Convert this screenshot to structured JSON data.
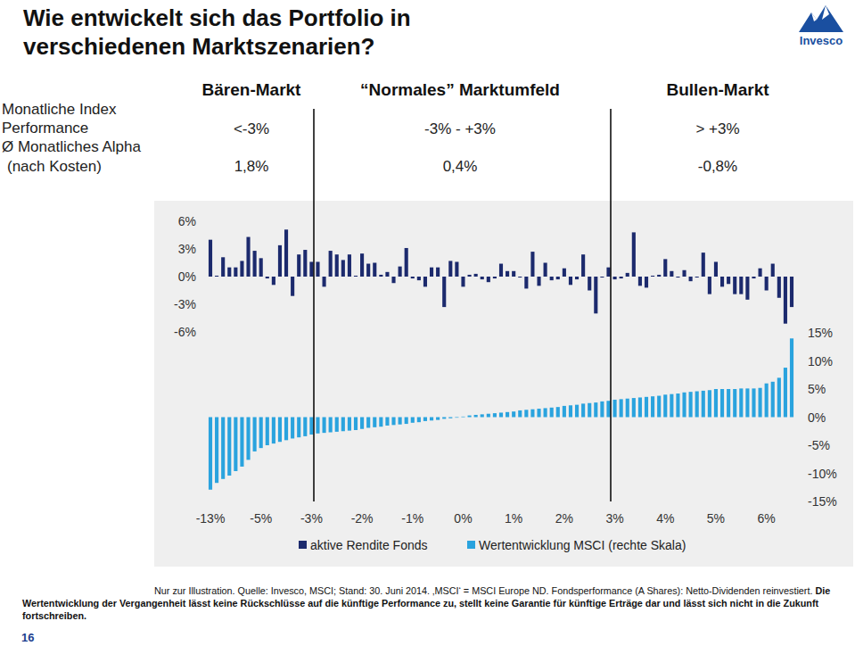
{
  "chart_data": {
    "type": "bar",
    "title": "Wie entwickelt sich das Portfolio in verschiedenen Marktszenarien?",
    "categories": [
      "-13%",
      null,
      null,
      null,
      null,
      null,
      null,
      null,
      "-5%",
      null,
      null,
      null,
      null,
      null,
      null,
      null,
      "-3%",
      null,
      null,
      null,
      null,
      null,
      null,
      null,
      "-2%",
      null,
      null,
      null,
      null,
      null,
      null,
      null,
      "-1%",
      null,
      null,
      null,
      null,
      null,
      null,
      null,
      "0%",
      null,
      null,
      null,
      null,
      null,
      null,
      null,
      "1%",
      null,
      null,
      null,
      null,
      null,
      null,
      null,
      "2%",
      null,
      null,
      null,
      null,
      null,
      null,
      null,
      "3%",
      null,
      null,
      null,
      null,
      null,
      null,
      null,
      "4%",
      null,
      null,
      null,
      null,
      null,
      null,
      null,
      "5%",
      null,
      null,
      null,
      null,
      null,
      null,
      null,
      "6%",
      null,
      null,
      null,
      null
    ],
    "series": [
      {
        "name": "aktive Rendite Fonds",
        "color": "#1c2a6d",
        "values": [
          4.0,
          0.1,
          2.1,
          1.0,
          1.0,
          1.7,
          4.3,
          2.8,
          2.0,
          -0.2,
          -0.9,
          3.4,
          5.1,
          -2.1,
          2.4,
          2.9,
          1.6,
          1.6,
          -1.1,
          2.8,
          2.4,
          1.8,
          2.4,
          0.1,
          2.5,
          1.4,
          1.5,
          0.2,
          0.5,
          -0.7,
          1.1,
          3.1,
          -0.2,
          -0.4,
          -1.1,
          1.0,
          1.0,
          -3.3,
          1.7,
          1.6,
          -1.1,
          0.2,
          0.3,
          -0.3,
          -0.6,
          -0.2,
          1.4,
          0.6,
          0.6,
          -0.1,
          -1.3,
          2.7,
          -1.0,
          1.5,
          -0.4,
          -0.3,
          0.9,
          -0.9,
          -0.3,
          2.4,
          -1.5,
          -4.0,
          -0.1,
          1.0,
          -0.3,
          -0.2,
          0.4,
          4.8,
          -1.0,
          -1.2,
          0.1,
          0.2,
          1.9,
          0.6,
          -0.1,
          0.7,
          -0.5,
          -0.1,
          2.6,
          -1.9,
          1.6,
          -1.1,
          -0.8,
          -1.9,
          -1.9,
          -2.5,
          -0.2,
          0.9,
          -1.5,
          1.4,
          -2.3,
          -5.1,
          -3.3
        ]
      },
      {
        "name": "Wertentwicklung MSCI (rechte Skala)",
        "color": "#2aa3de",
        "axis": "y2",
        "values": [
          -12.9,
          -11.7,
          -11.0,
          -10.4,
          -9.6,
          -8.8,
          -7.6,
          -6.1,
          -5.5,
          -5.0,
          -4.7,
          -4.4,
          -4.1,
          -3.8,
          -3.6,
          -3.4,
          -3.1,
          -2.9,
          -2.8,
          -2.7,
          -2.6,
          -2.5,
          -2.4,
          -2.3,
          -2.1,
          -1.9,
          -1.8,
          -1.7,
          -1.5,
          -1.4,
          -1.3,
          -1.2,
          -1.0,
          -0.9,
          -0.7,
          -0.6,
          -0.5,
          -0.3,
          -0.2,
          -0.1,
          0.1,
          0.3,
          0.4,
          0.5,
          0.6,
          0.7,
          0.8,
          0.9,
          1.0,
          1.2,
          1.3,
          1.4,
          1.5,
          1.6,
          1.7,
          1.8,
          2.0,
          2.1,
          2.2,
          2.4,
          2.5,
          2.6,
          2.8,
          2.9,
          3.1,
          3.2,
          3.3,
          3.4,
          3.5,
          3.6,
          3.7,
          3.8,
          4.0,
          4.1,
          4.2,
          4.4,
          4.5,
          4.6,
          4.7,
          4.8,
          5.0,
          5.0,
          5.0,
          5.0,
          5.1,
          5.1,
          5.1,
          5.2,
          6.0,
          6.3,
          7.0,
          8.8,
          14.0
        ]
      }
    ],
    "ylim": [
      -6,
      6
    ],
    "yticks": [
      {
        "value": 6,
        "label": "6%"
      },
      {
        "value": 3,
        "label": "3%"
      },
      {
        "value": 0,
        "label": "0%"
      },
      {
        "value": -3,
        "label": "-3%"
      },
      {
        "value": -6,
        "label": "-6%"
      }
    ],
    "y2lim": [
      -15,
      15
    ],
    "y2ticks": [
      {
        "value": 15,
        "label": "15%"
      },
      {
        "value": 10,
        "label": "10%"
      },
      {
        "value": 5,
        "label": "5%"
      },
      {
        "value": 0,
        "label": "0%"
      },
      {
        "value": -5,
        "label": "-5%"
      },
      {
        "value": -10,
        "label": "-10%"
      },
      {
        "value": -15,
        "label": "-15%"
      }
    ],
    "grid": false,
    "legend": "bottom"
  },
  "scenario_table": {
    "columns": [
      "Bären-Markt",
      "“Normales” Marktumfeld",
      "Bullen-Markt"
    ],
    "rows": [
      {
        "label_lines": [
          "Monatliche Index",
          "Performance"
        ],
        "cells": [
          "<-3%",
          "-3% - +3%",
          "> +3%"
        ]
      },
      {
        "label_lines": [
          "Ø Monatliches Alpha",
          "(nach Kosten)"
        ],
        "cells": [
          "1,8%",
          "0,4%",
          "-0,8%"
        ]
      }
    ]
  },
  "footnote": {
    "text": "Nur zur Illustration. Quelle: Invesco, MSCI; Stand: 30. Juni 2014. ‚MSCI‘ = MSCI Europe ND. Fondsperformance (A Shares): Netto-Dividenden reinvestiert.",
    "bold_text": "Die Wertentwicklung der Vergangenheit lässt keine Rückschlüsse auf die künftige Performance zu, stellt keine Garantie für künftige Erträge dar und lässt sich nicht in die Zukunft fortschreiben."
  },
  "page_number": "16",
  "logo": "Invesco"
}
